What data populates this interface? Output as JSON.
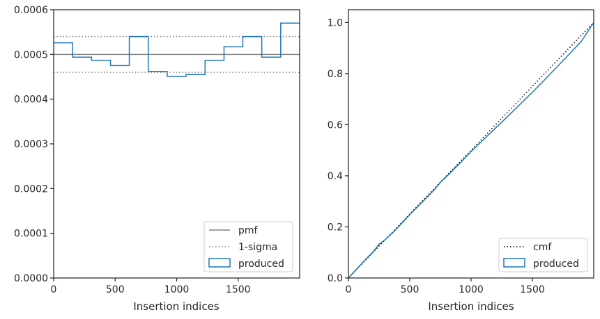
{
  "chart_data": [
    {
      "type": "line",
      "subtype": "step-histogram",
      "xlabel": "Insertion indices",
      "ylabel": "",
      "xlim": [
        0,
        2000
      ],
      "ylim": [
        0,
        0.0006
      ],
      "xticks": [
        0,
        500,
        1000,
        1500
      ],
      "xtick_labels": [
        "0",
        "500",
        "1000",
        "1500"
      ],
      "yticks": [
        0,
        0.0001,
        0.0002,
        0.0003,
        0.0004,
        0.0005,
        0.0006
      ],
      "ytick_labels": [
        "0.0000",
        "0.0001",
        "0.0002",
        "0.0003",
        "0.0004",
        "0.0005",
        "0.0006"
      ],
      "grid": false,
      "legend_position": "bottom-right",
      "legend": [
        "pmf",
        "1-sigma",
        "produced"
      ],
      "hlines": [
        {
          "name": "pmf",
          "y": 0.0005,
          "style": "solid",
          "color": "#808080"
        },
        {
          "name": "1-sigma",
          "y": 0.00054,
          "style": "dotted",
          "color": "#808080"
        },
        {
          "name": "1-sigma",
          "y": 0.00046,
          "style": "dotted",
          "color": "#808080"
        }
      ],
      "series": [
        {
          "name": "produced",
          "style": "step",
          "color": "#1f77b4",
          "bin_edges": [
            0,
            154,
            308,
            462,
            615,
            769,
            923,
            1077,
            1231,
            1385,
            1538,
            1692,
            1846,
            2000
          ],
          "values": [
            0.000526,
            0.000494,
            0.000487,
            0.000475,
            0.00054,
            0.000462,
            0.000451,
            0.000455,
            0.000487,
            0.000517,
            0.00054,
            0.000494,
            0.00057
          ]
        }
      ]
    },
    {
      "type": "line",
      "xlabel": "Insertion indices",
      "ylabel": "",
      "xlim": [
        0,
        2000
      ],
      "ylim": [
        0,
        1.05
      ],
      "xticks": [
        0,
        500,
        1000,
        1500
      ],
      "xtick_labels": [
        "0",
        "500",
        "1000",
        "1500"
      ],
      "yticks": [
        0,
        0.2,
        0.4,
        0.6,
        0.8,
        1.0
      ],
      "ytick_labels": [
        "0.0",
        "0.2",
        "0.4",
        "0.6",
        "0.8",
        "1.0"
      ],
      "grid": false,
      "legend_position": "bottom-right",
      "legend": [
        "cmf",
        "produced"
      ],
      "series": [
        {
          "name": "cmf",
          "style": "dotted",
          "color": "#000000",
          "x": [
            0,
            2000
          ],
          "y": [
            0,
            1.0
          ]
        },
        {
          "name": "produced",
          "style": "step",
          "color": "#1f77b4",
          "x": [
            0,
            50,
            100,
            150,
            200,
            250,
            300,
            350,
            400,
            450,
            500,
            600,
            700,
            750,
            800,
            900,
            1000,
            1100,
            1200,
            1300,
            1400,
            1500,
            1600,
            1700,
            1800,
            1900,
            2000
          ],
          "y": [
            0,
            0.026,
            0.052,
            0.078,
            0.102,
            0.132,
            0.15,
            0.172,
            0.196,
            0.222,
            0.248,
            0.296,
            0.345,
            0.374,
            0.397,
            0.445,
            0.495,
            0.541,
            0.587,
            0.633,
            0.68,
            0.727,
            0.776,
            0.826,
            0.876,
            0.927,
            1.0
          ]
        }
      ]
    }
  ]
}
